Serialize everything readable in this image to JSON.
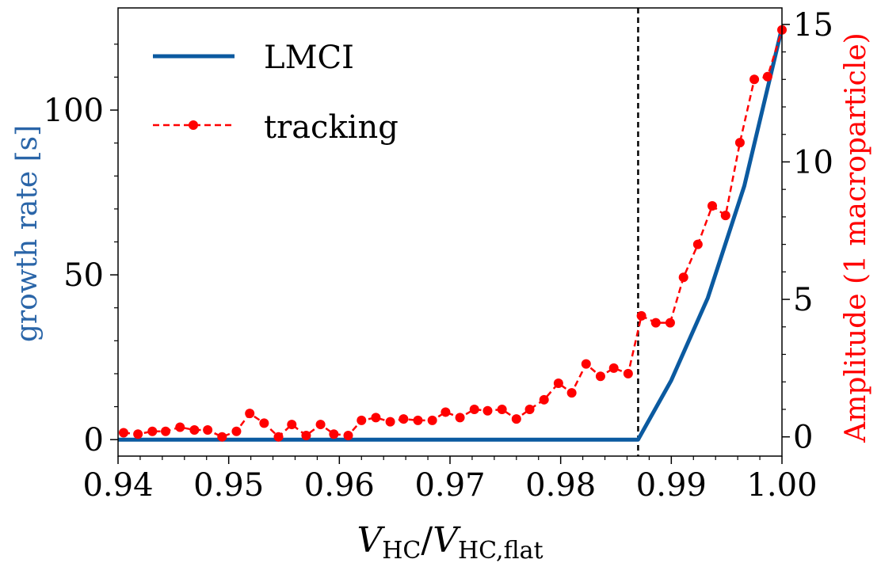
{
  "chart_data": {
    "type": "line",
    "colors": {
      "lmci": "#0b5aa0",
      "tracking": "#ff0000",
      "threshold": "#000000",
      "left_axis": "#2a65a8",
      "right_axis": "#ff0000"
    },
    "xlim": [
      0.94,
      1.0
    ],
    "ylim_left": [
      -5,
      131
    ],
    "ylim_right": [
      -0.7,
      15.6
    ],
    "x_ticks": [
      "0.94",
      "0.95",
      "0.96",
      "0.97",
      "0.98",
      "0.99",
      "1.00"
    ],
    "y_ticks_left": [
      "0",
      "50",
      "100"
    ],
    "y_ticks_right": [
      "0",
      "5",
      "10",
      "15"
    ],
    "xlabel": {
      "var": "V",
      "sub": "HC",
      "slash": "/",
      "var2": "V",
      "sub2": "HC,flat"
    },
    "ylabel_left": "growth rate [s]",
    "ylabel_right": "Amplitude (1 macroparticle)",
    "threshold_x": 0.987,
    "legend": {
      "placement": "top-left",
      "entries": [
        "LMCI",
        "tracking"
      ]
    },
    "series": [
      {
        "name": "LMCI",
        "axis": "left",
        "style": "solid",
        "x": [
          0.94,
          0.987,
          0.99,
          0.9933,
          0.9966,
          1.0
        ],
        "y": [
          0,
          0,
          18,
          43,
          77,
          125
        ]
      },
      {
        "name": "tracking",
        "axis": "right",
        "style": "dashed-marker",
        "x": [
          0.9405,
          0.9418,
          0.9431,
          0.9443,
          0.9456,
          0.9469,
          0.9481,
          0.9494,
          0.9507,
          0.9519,
          0.9532,
          0.9545,
          0.9557,
          0.957,
          0.9583,
          0.9595,
          0.9608,
          0.962,
          0.9633,
          0.9646,
          0.9658,
          0.9671,
          0.9684,
          0.9696,
          0.9709,
          0.9722,
          0.9734,
          0.9747,
          0.976,
          0.9772,
          0.9785,
          0.9798,
          0.981,
          0.9823,
          0.9836,
          0.9848,
          0.9861,
          0.9873,
          0.9886,
          0.9899,
          0.9911,
          0.9924,
          0.9937,
          0.9949,
          0.9962,
          0.9975,
          0.9987,
          1.0
        ],
        "y": [
          0.15,
          0.1,
          0.2,
          0.2,
          0.35,
          0.25,
          0.25,
          0.0,
          0.2,
          0.85,
          0.5,
          0.0,
          0.45,
          0.05,
          0.45,
          0.1,
          0.05,
          0.6,
          0.7,
          0.55,
          0.65,
          0.6,
          0.6,
          0.9,
          0.7,
          1.0,
          0.95,
          1.0,
          0.65,
          1.0,
          1.35,
          1.95,
          1.6,
          2.65,
          2.2,
          2.5,
          2.3,
          4.4,
          4.15,
          4.15,
          5.8,
          7.0,
          8.4,
          8.05,
          10.7,
          13.0,
          13.1,
          14.8
        ]
      }
    ]
  }
}
